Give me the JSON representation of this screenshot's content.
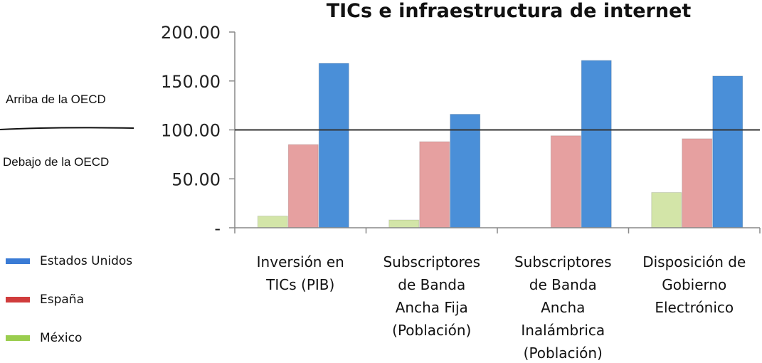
{
  "chart_data": {
    "type": "bar",
    "title": "TICs e infraestructura de internet",
    "categories": [
      [
        "Inversión en",
        "TICs (PIB)"
      ],
      [
        "Subscriptores",
        "de Banda",
        "Ancha Fija",
        "(Población)"
      ],
      [
        "Subscriptores",
        "de Banda",
        "Ancha",
        "Inalámbrica",
        "(Población)"
      ],
      [
        "Disposición de",
        "Gobierno",
        "Electrónico"
      ]
    ],
    "series": [
      {
        "name": "México",
        "color": "#d3e5a8",
        "values": [
          12,
          8,
          0,
          36
        ]
      },
      {
        "name": "España",
        "color": "#e6a0a0",
        "values": [
          85,
          88,
          94,
          91
        ]
      },
      {
        "name": "Estados Unidos",
        "color": "#4a8fd8",
        "values": [
          168,
          116,
          171,
          155
        ]
      }
    ],
    "ylim": [
      0,
      200
    ],
    "yticks": [
      {
        "value": 200,
        "label": "200.00"
      },
      {
        "value": 150,
        "label": "150.00"
      },
      {
        "value": 100,
        "label": "100.00"
      },
      {
        "value": 50,
        "label": "50.00"
      },
      {
        "value": 0,
        "label": "-"
      }
    ],
    "reference_line": 100,
    "legend_order": [
      "Estados Unidos",
      "España",
      "México"
    ],
    "legend_colors": {
      "Estados Unidos": "#3a7bd5",
      "España": "#d03c3c",
      "México": "#9acd4e"
    },
    "annotations": {
      "above": "Arriba de la OECD",
      "below": "Debajo de la OECD"
    }
  }
}
